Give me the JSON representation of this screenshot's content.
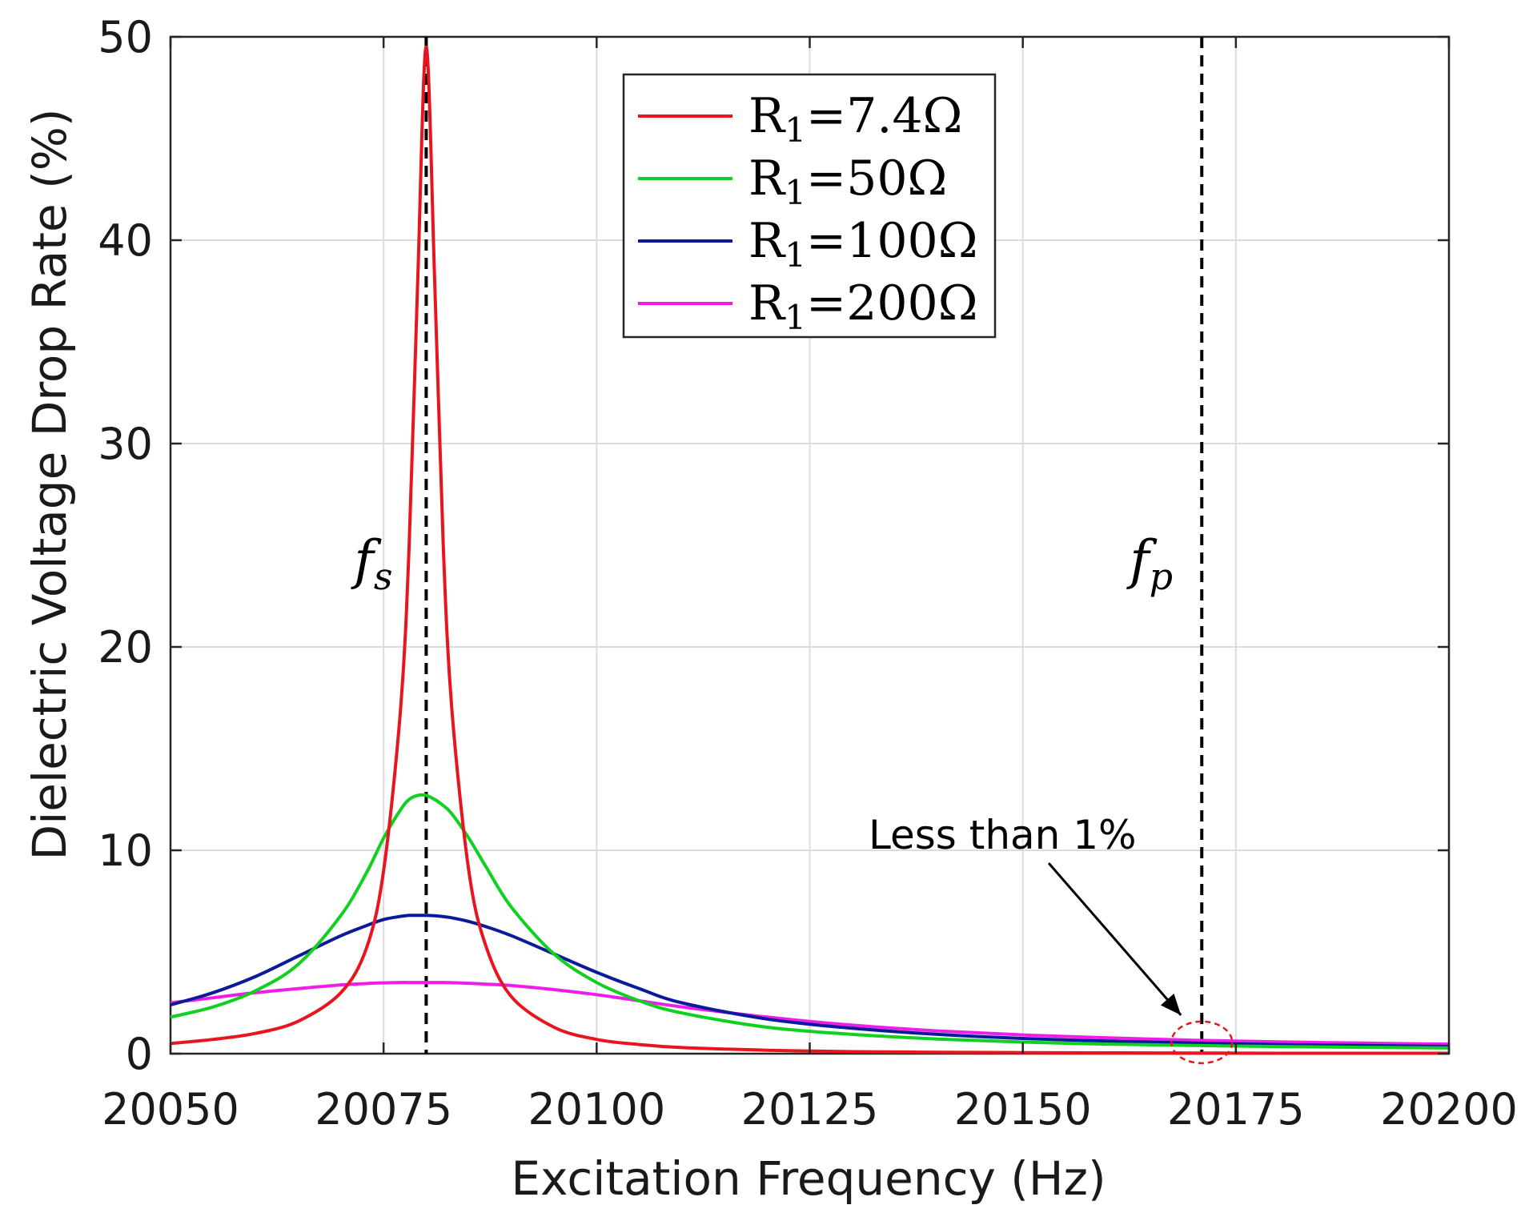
{
  "chart_data": {
    "type": "line",
    "xlabel": "Excitation Frequency (Hz)",
    "ylabel": "Dielectric Voltage Drop Rate (%)",
    "xlim": [
      20050,
      20200
    ],
    "ylim": [
      0,
      50
    ],
    "xticks": [
      20050,
      20075,
      20100,
      20125,
      20150,
      20175,
      20200
    ],
    "yticks": [
      0,
      10,
      20,
      30,
      40,
      50
    ],
    "grid": true,
    "legend_position": "top-center",
    "x": [
      20050,
      20055,
      20060,
      20065,
      20070,
      20073,
      20075,
      20077,
      20078,
      20079,
      20080,
      20081,
      20082,
      20083,
      20085,
      20087,
      20090,
      20095,
      20100,
      20105,
      20110,
      20120,
      20130,
      20140,
      20150,
      20160,
      20170,
      20180,
      20190,
      20200
    ],
    "series": [
      {
        "name": "R₁=7.4Ω",
        "label_base": "R",
        "label_sub": "1",
        "label_value": "=7.4Ω",
        "color": "#e8141e",
        "values": [
          0.5,
          0.7,
          1.0,
          1.6,
          3.0,
          5.2,
          9.0,
          17.0,
          25.0,
          38.0,
          49.5,
          38.0,
          25.0,
          17.0,
          9.0,
          5.3,
          2.8,
          1.3,
          0.7,
          0.45,
          0.3,
          0.17,
          0.1,
          0.07,
          0.05,
          0.04,
          0.03,
          0.02,
          0.02,
          0.02
        ]
      },
      {
        "name": "R₁=50Ω",
        "label_base": "R",
        "label_sub": "1",
        "label_value": "=50Ω",
        "color": "#10d020",
        "values": [
          1.8,
          2.3,
          3.1,
          4.4,
          6.8,
          8.9,
          10.6,
          12.0,
          12.5,
          12.7,
          12.7,
          12.5,
          12.2,
          11.8,
          10.6,
          9.2,
          7.2,
          4.9,
          3.5,
          2.6,
          2.0,
          1.3,
          0.95,
          0.72,
          0.57,
          0.47,
          0.4,
          0.35,
          0.31,
          0.28
        ]
      },
      {
        "name": "R₁=100Ω",
        "label_base": "R",
        "label_sub": "1",
        "label_value": "=100Ω",
        "color": "#0a1a9a",
        "values": [
          2.4,
          3.0,
          3.8,
          4.8,
          5.8,
          6.3,
          6.6,
          6.75,
          6.8,
          6.8,
          6.8,
          6.78,
          6.74,
          6.68,
          6.5,
          6.25,
          5.8,
          4.9,
          4.0,
          3.2,
          2.5,
          1.7,
          1.25,
          0.95,
          0.75,
          0.62,
          0.52,
          0.45,
          0.4,
          0.36
        ]
      },
      {
        "name": "R₁=200Ω",
        "label_base": "R",
        "label_sub": "1",
        "label_value": "=200Ω",
        "color": "#ee1ee8",
        "values": [
          2.5,
          2.75,
          3.0,
          3.2,
          3.38,
          3.45,
          3.48,
          3.5,
          3.5,
          3.5,
          3.5,
          3.5,
          3.5,
          3.49,
          3.46,
          3.42,
          3.35,
          3.15,
          2.9,
          2.6,
          2.3,
          1.8,
          1.4,
          1.12,
          0.92,
          0.78,
          0.66,
          0.58,
          0.52,
          0.47
        ]
      }
    ],
    "vertical_lines": [
      {
        "name": "fs",
        "x": 20080,
        "label_base": "f",
        "label_sub": "s",
        "style": "dashed",
        "color": "#000000"
      },
      {
        "name": "fp",
        "x": 20171,
        "label_base": "f",
        "label_sub": "p",
        "style": "dashed",
        "color": "#000000"
      }
    ],
    "annotation": {
      "text": "Less than 1%",
      "arrow_target": {
        "x": 20171,
        "y": 0.4
      },
      "highlight_color": "#e8141e"
    }
  }
}
